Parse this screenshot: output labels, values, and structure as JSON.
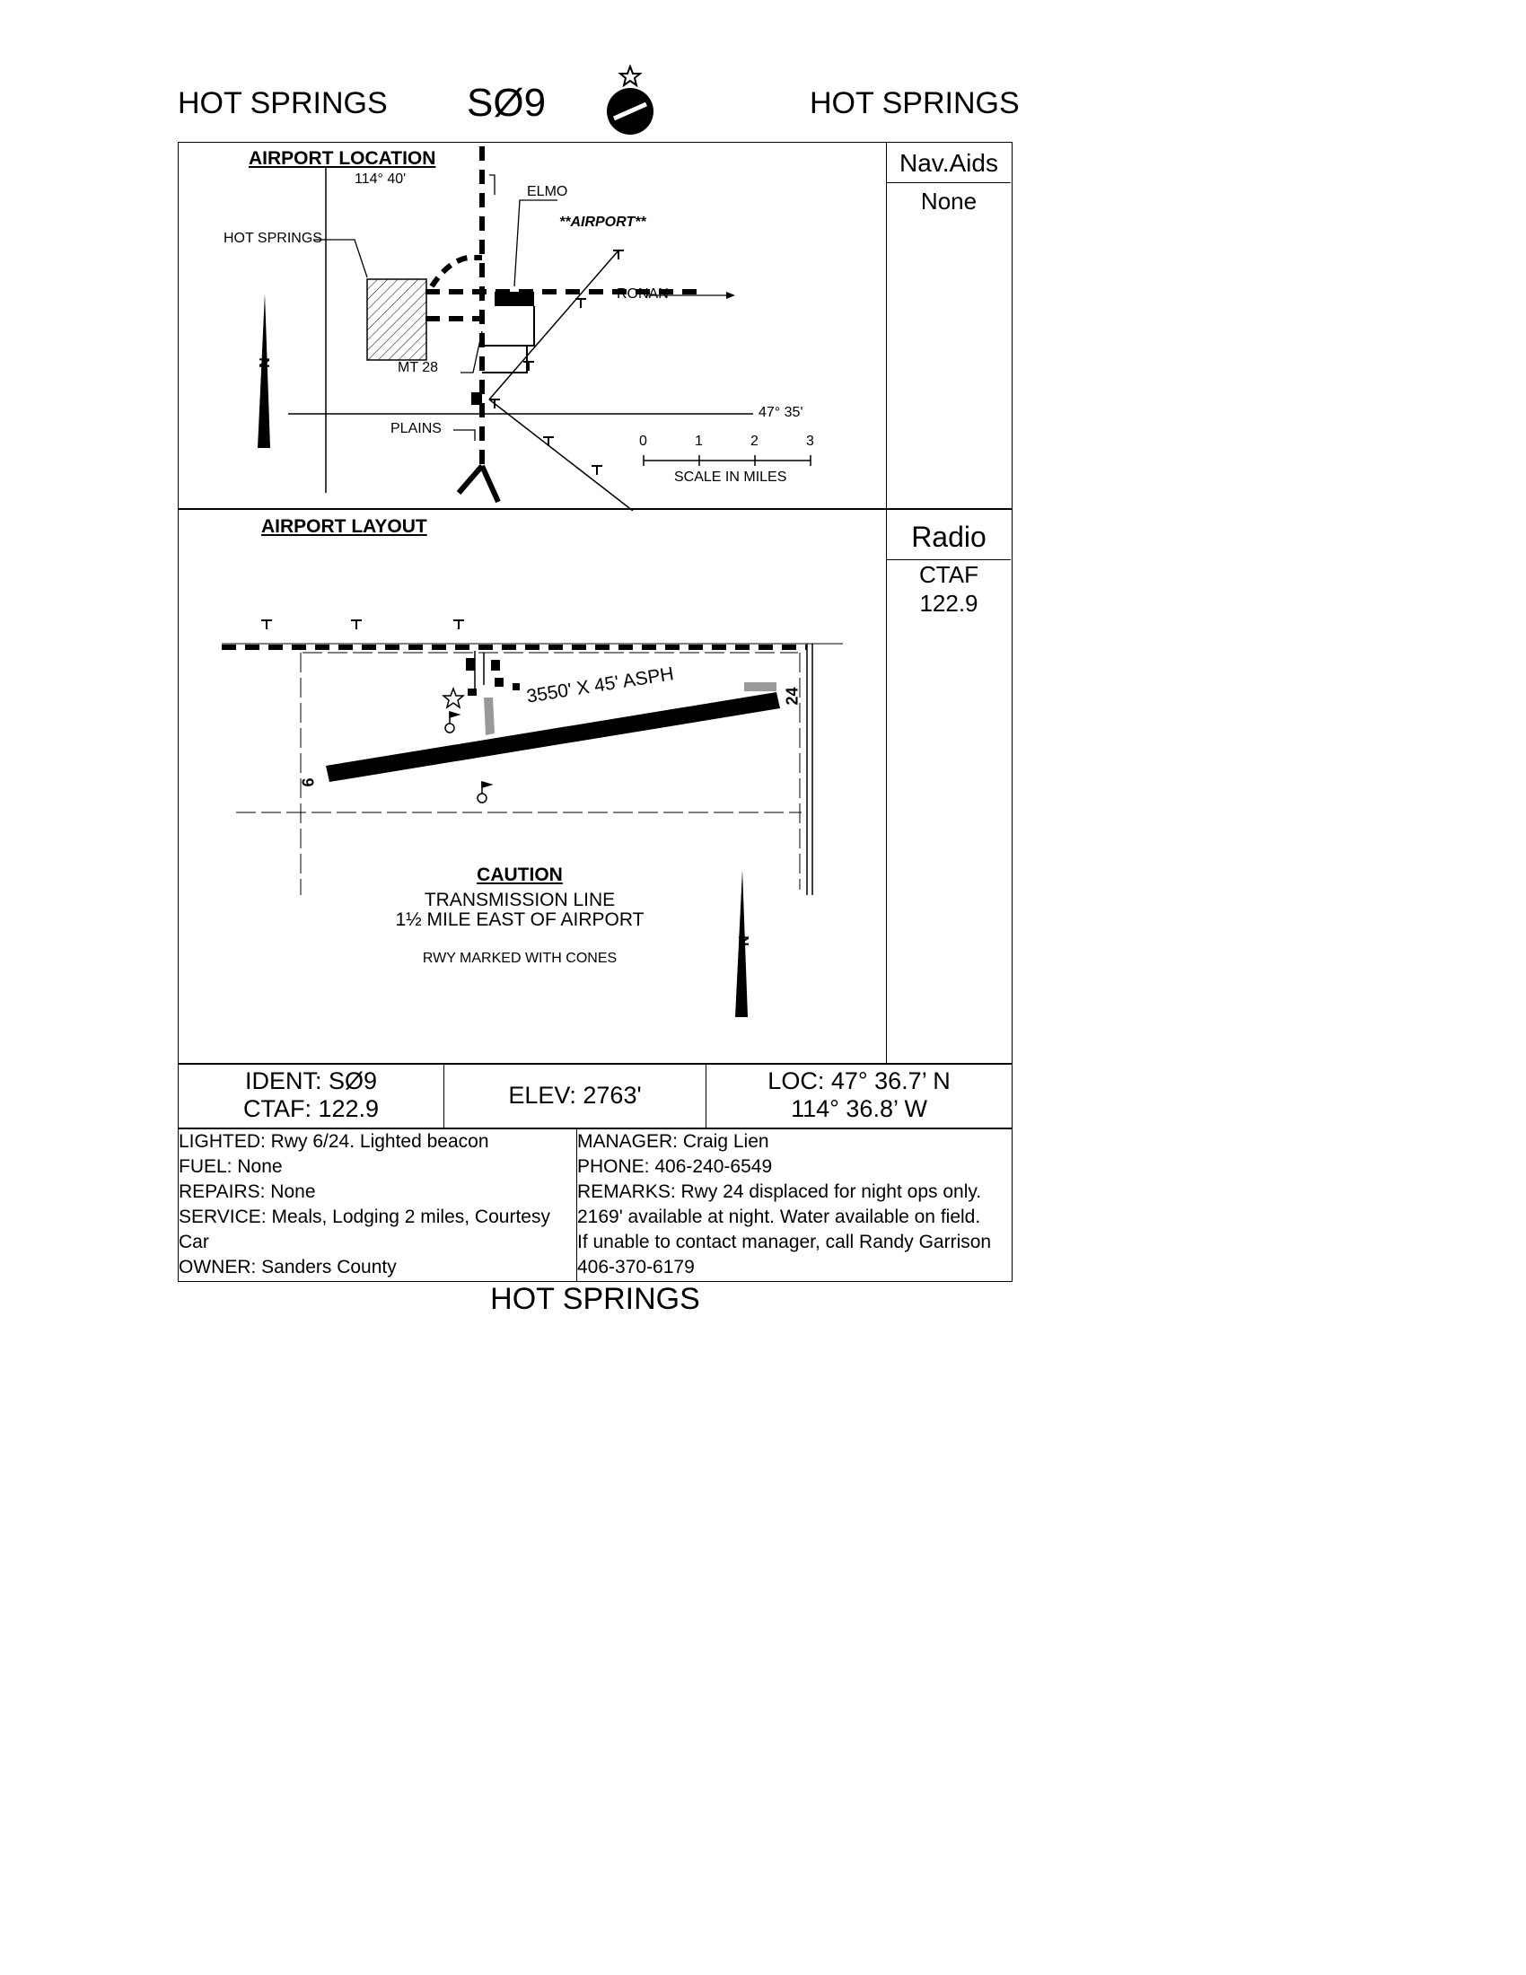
{
  "header": {
    "city_left": "HOT SPRINGS",
    "ident": "SØ9",
    "city_right": "HOT SPRINGS",
    "icon": "airport-symbol-icon"
  },
  "location_map": {
    "title": "AIRPORT LOCATION",
    "longitude_label": "114° 40'",
    "latitude_label": "47° 35'",
    "labels": {
      "elmo": "ELMO",
      "airport": "**AIRPORT**",
      "hot_springs": "HOT SPRINGS",
      "ronan": "RONAN",
      "mt28": "MT 28",
      "plains": "PLAINS",
      "north": "N"
    },
    "scale": {
      "ticks": [
        "0",
        "1",
        "2",
        "3"
      ],
      "label": "SCALE IN MILES"
    }
  },
  "navaids": {
    "title": "Nav.Aids",
    "value": "None"
  },
  "layout_map": {
    "title": "AIRPORT LAYOUT",
    "runway_label": "3550' X 45' ASPH",
    "rwy_end_west": "6",
    "rwy_end_east": "24",
    "caution_title": "CAUTION",
    "caution_line1": "TRANSMISSION LINE",
    "caution_line2": "1½ MILE EAST OF AIRPORT",
    "note": "RWY MARKED WITH CONES",
    "north": "N"
  },
  "radio": {
    "title": "Radio",
    "ctaf_label": "CTAF",
    "ctaf_freq": "122.9"
  },
  "summary": {
    "ident": "IDENT: SØ9",
    "ctaf": "CTAF: 122.9",
    "elev": "ELEV: 2763'",
    "loc_lat": "LOC: 47° 36.7’ N",
    "loc_lon": "114° 36.8’ W"
  },
  "details_left": [
    "LIGHTED: Rwy 6/24. Lighted beacon",
    "FUEL: None",
    "REPAIRS: None",
    "SERVICE: Meals, Lodging 2 miles,  Courtesy",
    "Car",
    "OWNER: Sanders County"
  ],
  "details_right": [
    "MANAGER: Craig Lien",
    "PHONE: 406-240-6549",
    "REMARKS: Rwy 24 displaced for night ops only.",
    "2169' available at night. Water available on field.",
    "If unable to contact manager, call Randy Garrison",
    "406-370-6179"
  ],
  "footer": {
    "city": "HOT SPRINGS"
  }
}
